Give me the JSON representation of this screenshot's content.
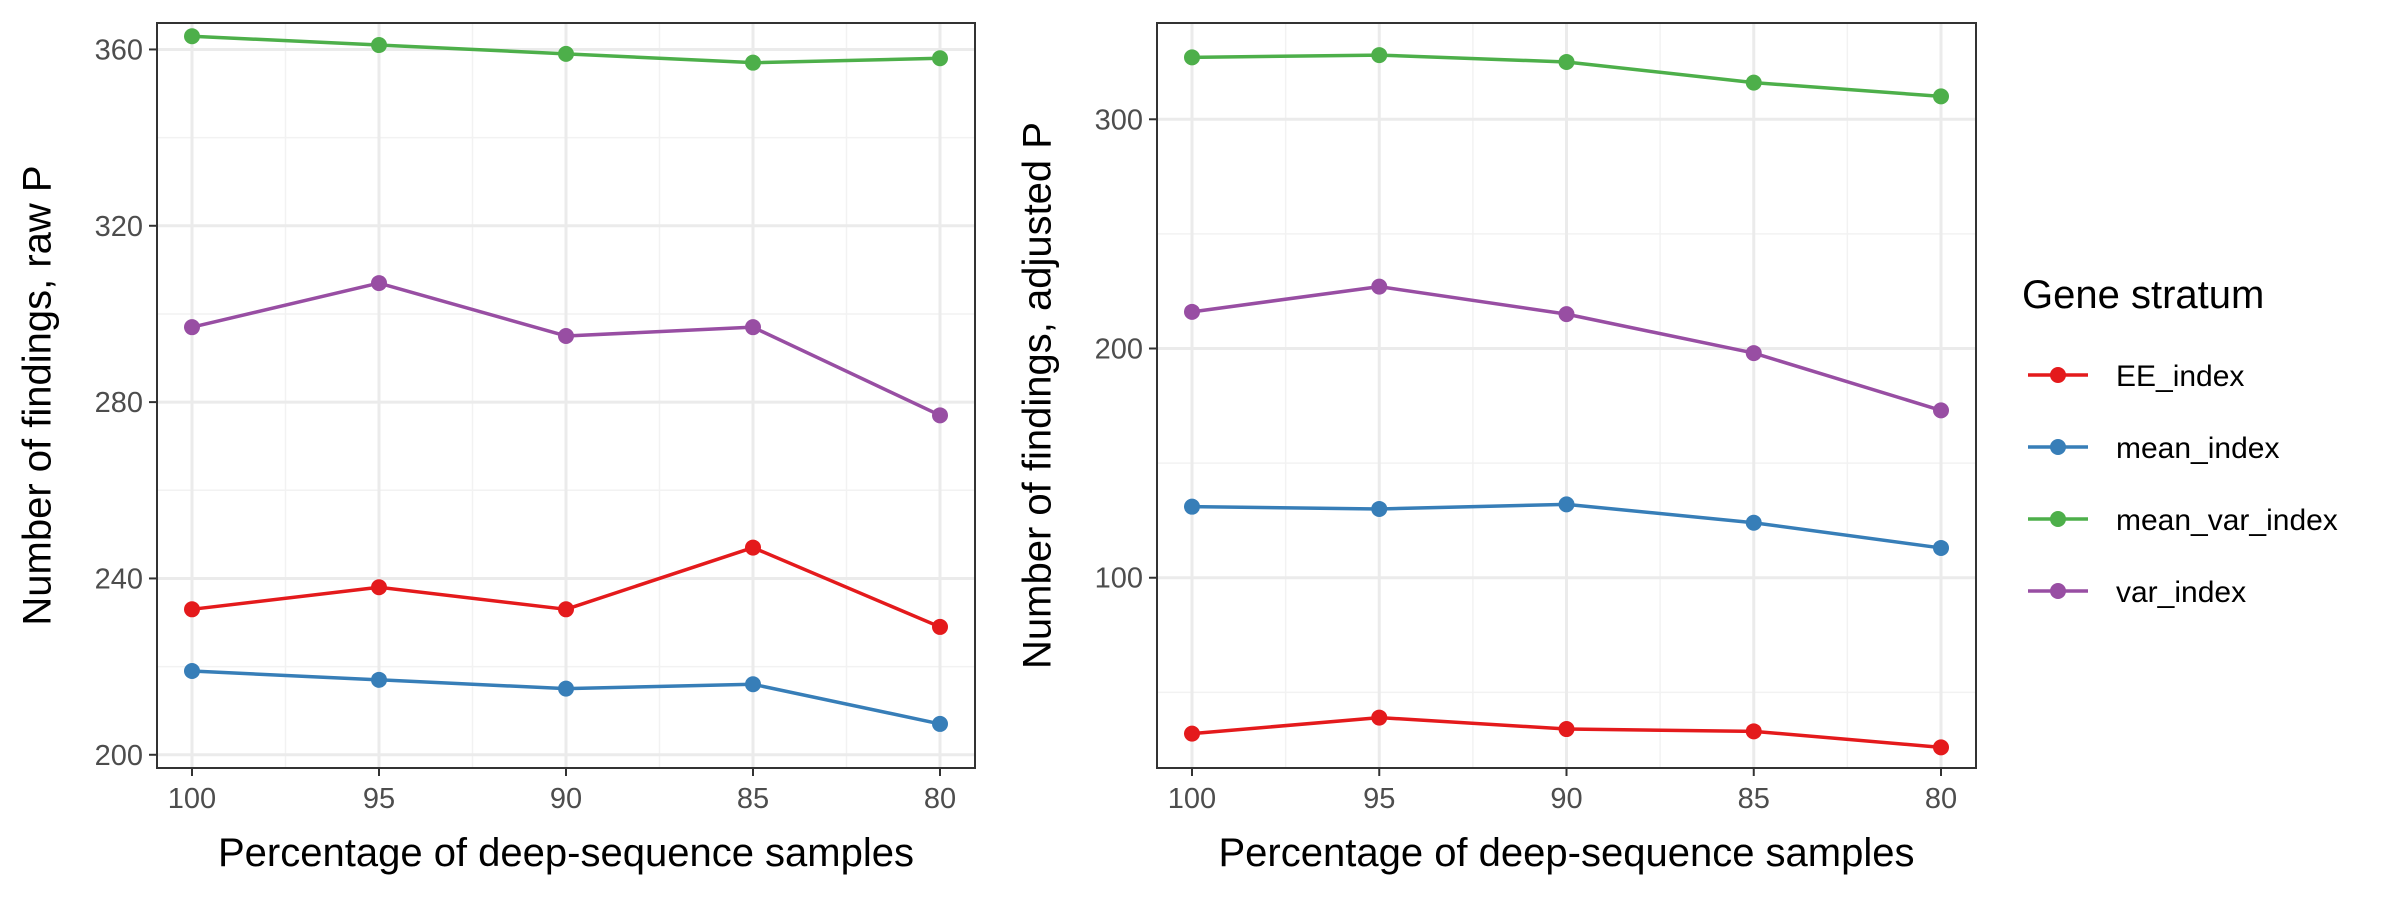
{
  "legend": {
    "title": "Gene stratum",
    "placement": "right",
    "entries": [
      {
        "name": "EE_index",
        "color": "#e41a1c"
      },
      {
        "name": "mean_index",
        "color": "#377eb8"
      },
      {
        "name": "mean_var_index",
        "color": "#4daf4a"
      },
      {
        "name": "var_index",
        "color": "#984ea3"
      }
    ]
  },
  "chart_data": [
    {
      "type": "line",
      "xlabel": "Percentage of deep-sequence samples",
      "ylabel": "Number of findings, raw P",
      "x": [
        100,
        95,
        90,
        85,
        80
      ],
      "xticks": [
        "100",
        "95",
        "90",
        "85",
        "80"
      ],
      "ylim": [
        197,
        366
      ],
      "yticks": [
        200,
        240,
        280,
        320,
        360
      ],
      "yminor": [
        220,
        260,
        300,
        340
      ],
      "grid": true,
      "series": [
        {
          "name": "EE_index",
          "color": "#e41a1c",
          "values": [
            233,
            238,
            233,
            247,
            229
          ]
        },
        {
          "name": "mean_index",
          "color": "#377eb8",
          "values": [
            219,
            217,
            215,
            216,
            207
          ]
        },
        {
          "name": "mean_var_index",
          "color": "#4daf4a",
          "values": [
            363,
            361,
            359,
            357,
            358
          ]
        },
        {
          "name": "var_index",
          "color": "#984ea3",
          "values": [
            297,
            307,
            295,
            297,
            277
          ]
        }
      ]
    },
    {
      "type": "line",
      "xlabel": "Percentage of deep-sequence samples",
      "ylabel": "Number of findings, adjusted P",
      "x": [
        100,
        95,
        90,
        85,
        80
      ],
      "xticks": [
        "100",
        "95",
        "90",
        "85",
        "80"
      ],
      "ylim": [
        17,
        342
      ],
      "yticks": [
        100,
        200,
        300
      ],
      "yminor": [
        50,
        150,
        250
      ],
      "grid": true,
      "series": [
        {
          "name": "EE_index",
          "color": "#e41a1c",
          "values": [
            32,
            39,
            34,
            33,
            26
          ]
        },
        {
          "name": "mean_index",
          "color": "#377eb8",
          "values": [
            131,
            130,
            132,
            124,
            113
          ]
        },
        {
          "name": "mean_var_index",
          "color": "#4daf4a",
          "values": [
            327,
            328,
            325,
            316,
            310
          ]
        },
        {
          "name": "var_index",
          "color": "#984ea3",
          "values": [
            216,
            227,
            215,
            198,
            173
          ]
        }
      ]
    }
  ]
}
